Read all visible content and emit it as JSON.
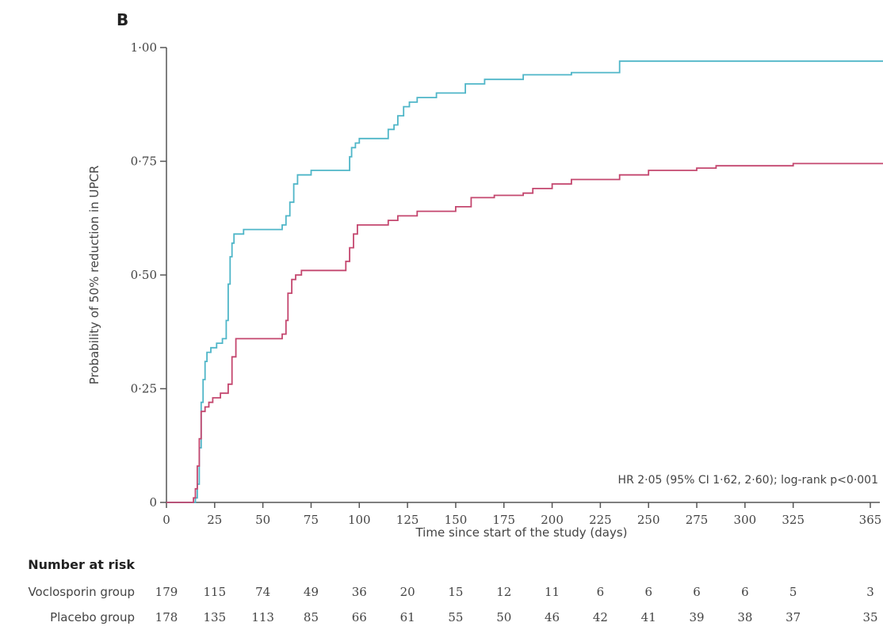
{
  "chart_data": {
    "type": "line",
    "panel_label": "B",
    "xlabel": "Time since start of the study (days)",
    "ylabel": "Probability of 50% reduction in UPCR",
    "xlim": [
      0,
      365
    ],
    "ylim": [
      0,
      1
    ],
    "x_ticks": [
      0,
      25,
      50,
      75,
      100,
      125,
      150,
      175,
      200,
      225,
      250,
      275,
      300,
      325,
      365
    ],
    "y_ticks": [
      {
        "value": 0,
        "label": "0"
      },
      {
        "value": 0.25,
        "label": "0·25"
      },
      {
        "value": 0.5,
        "label": "0·50"
      },
      {
        "value": 0.75,
        "label": "0·75"
      },
      {
        "value": 1.0,
        "label": "1·00"
      }
    ],
    "annotation": "HR 2·05 (95% CI 1·62, 2·60); log-rank p<0·001",
    "series": [
      {
        "color": "#4fb6c8",
        "points": [
          [
            0,
            0
          ],
          [
            14,
            0
          ],
          [
            15,
            0.01
          ],
          [
            16,
            0.04
          ],
          [
            17,
            0.12
          ],
          [
            18,
            0.22
          ],
          [
            19,
            0.27
          ],
          [
            20,
            0.31
          ],
          [
            21,
            0.33
          ],
          [
            23,
            0.34
          ],
          [
            26,
            0.35
          ],
          [
            29,
            0.36
          ],
          [
            31,
            0.4
          ],
          [
            32,
            0.48
          ],
          [
            33,
            0.54
          ],
          [
            34,
            0.57
          ],
          [
            35,
            0.59
          ],
          [
            40,
            0.6
          ],
          [
            55,
            0.6
          ],
          [
            60,
            0.61
          ],
          [
            62,
            0.63
          ],
          [
            64,
            0.66
          ],
          [
            66,
            0.7
          ],
          [
            68,
            0.72
          ],
          [
            75,
            0.73
          ],
          [
            94,
            0.73
          ],
          [
            95,
            0.76
          ],
          [
            96,
            0.78
          ],
          [
            98,
            0.79
          ],
          [
            100,
            0.8
          ],
          [
            110,
            0.8
          ],
          [
            115,
            0.82
          ],
          [
            118,
            0.83
          ],
          [
            120,
            0.85
          ],
          [
            123,
            0.87
          ],
          [
            126,
            0.88
          ],
          [
            130,
            0.89
          ],
          [
            140,
            0.9
          ],
          [
            155,
            0.92
          ],
          [
            165,
            0.93
          ],
          [
            180,
            0.93
          ],
          [
            185,
            0.94
          ],
          [
            200,
            0.94
          ],
          [
            210,
            0.945
          ],
          [
            232,
            0.945
          ],
          [
            235,
            0.97
          ],
          [
            365,
            0.97
          ]
        ]
      },
      {
        "color": "#c4476f",
        "points": [
          [
            0,
            0
          ],
          [
            13,
            0
          ],
          [
            14,
            0.01
          ],
          [
            15,
            0.03
          ],
          [
            16,
            0.08
          ],
          [
            17,
            0.14
          ],
          [
            18,
            0.2
          ],
          [
            20,
            0.21
          ],
          [
            22,
            0.22
          ],
          [
            24,
            0.23
          ],
          [
            28,
            0.24
          ],
          [
            32,
            0.26
          ],
          [
            34,
            0.32
          ],
          [
            36,
            0.36
          ],
          [
            55,
            0.36
          ],
          [
            60,
            0.37
          ],
          [
            62,
            0.4
          ],
          [
            63,
            0.46
          ],
          [
            65,
            0.49
          ],
          [
            67,
            0.5
          ],
          [
            70,
            0.51
          ],
          [
            90,
            0.51
          ],
          [
            93,
            0.53
          ],
          [
            95,
            0.56
          ],
          [
            97,
            0.59
          ],
          [
            99,
            0.61
          ],
          [
            110,
            0.61
          ],
          [
            115,
            0.62
          ],
          [
            120,
            0.63
          ],
          [
            130,
            0.64
          ],
          [
            150,
            0.65
          ],
          [
            158,
            0.67
          ],
          [
            170,
            0.675
          ],
          [
            185,
            0.68
          ],
          [
            190,
            0.69
          ],
          [
            200,
            0.7
          ],
          [
            210,
            0.71
          ],
          [
            225,
            0.71
          ],
          [
            235,
            0.72
          ],
          [
            250,
            0.73
          ],
          [
            275,
            0.735
          ],
          [
            285,
            0.74
          ],
          [
            325,
            0.745
          ],
          [
            365,
            0.745
          ]
        ]
      }
    ],
    "risk_table": {
      "title": "Number at risk",
      "groups": [
        {
          "label": "Voclosporin group",
          "values": [
            "179",
            "115",
            "74",
            "49",
            "36",
            "20",
            "15",
            "12",
            "11",
            "6",
            "6",
            "6",
            "6",
            "5",
            "3"
          ]
        },
        {
          "label": "Placebo group",
          "values": [
            "178",
            "135",
            "113",
            "85",
            "66",
            "61",
            "55",
            "50",
            "46",
            "42",
            "41",
            "39",
            "38",
            "37",
            "35"
          ]
        }
      ]
    }
  }
}
